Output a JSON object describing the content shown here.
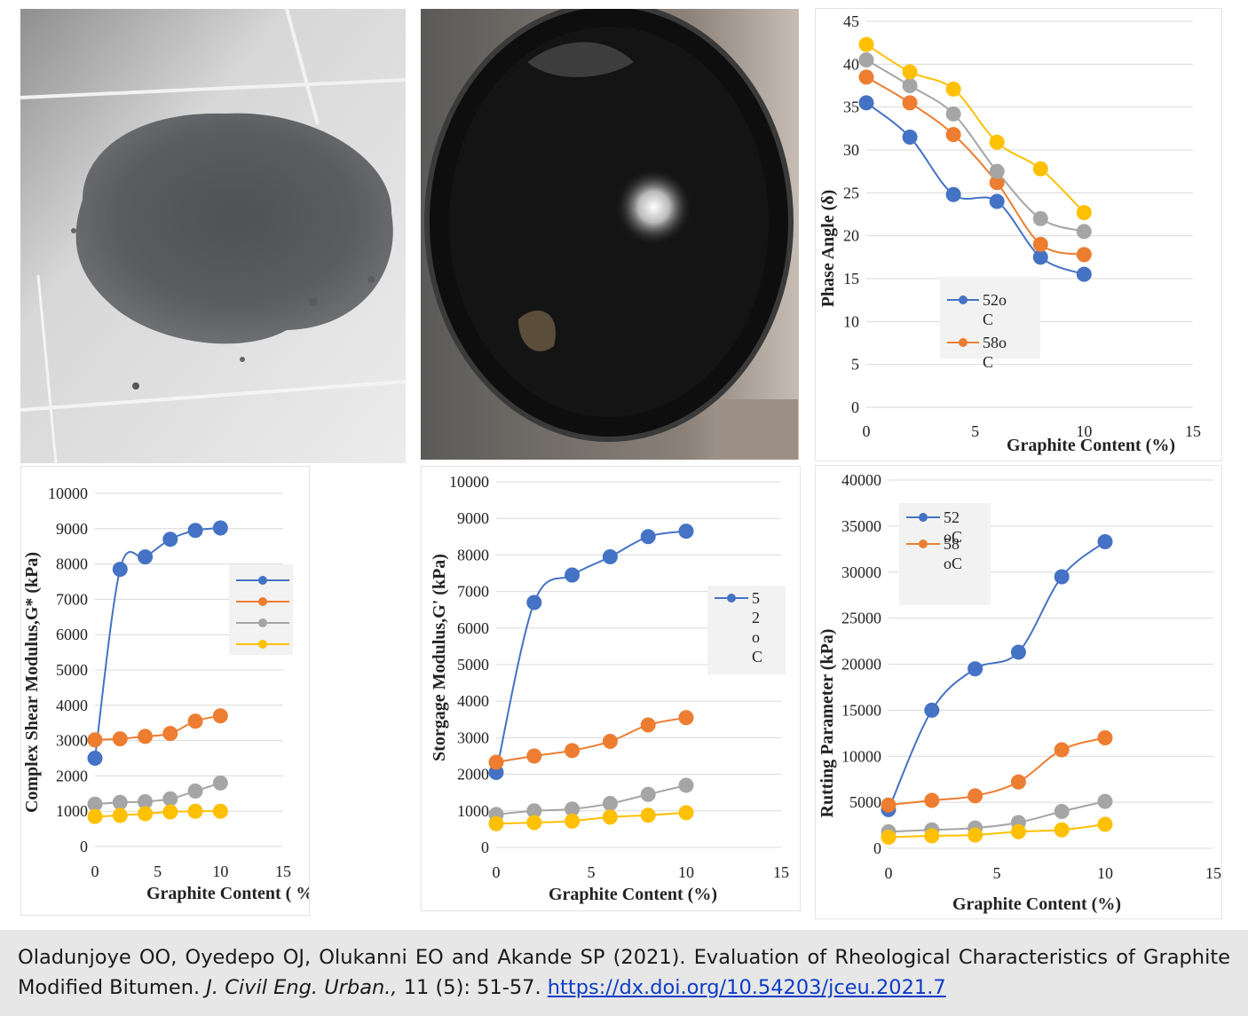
{
  "photos": [
    {
      "name": "graphite-powder-photo",
      "subject": "graphite powder"
    },
    {
      "name": "bitumen-bucket-photo",
      "subject": "modified bitumen in bucket"
    }
  ],
  "colors": {
    "blue": "#4472C4",
    "orange": "#ED7D31",
    "gray": "#A5A5A5",
    "yellow": "#FFC000"
  },
  "chart_data": [
    {
      "id": "phase",
      "type": "line",
      "ylabel": "Phase Angle (δ)",
      "xlabel": "Graphite Content (%)",
      "xlim": [
        0,
        15
      ],
      "ylim": [
        0,
        45
      ],
      "xticks": [
        "0",
        "5",
        "10",
        "15"
      ],
      "yticks": [
        "0",
        "5",
        "10",
        "15",
        "20",
        "25",
        "30",
        "35",
        "40",
        "45"
      ],
      "x": [
        0,
        2,
        4,
        6,
        8,
        10
      ],
      "series": [
        {
          "name": "52oC",
          "color": "#4472C4",
          "values": [
            35.5,
            31.5,
            24.8,
            24.0,
            17.5,
            15.5
          ]
        },
        {
          "name": "58oC",
          "color": "#ED7D31",
          "values": [
            38.5,
            35.5,
            31.8,
            26.2,
            19.0,
            17.8
          ]
        },
        {
          "name": "",
          "color": "#A5A5A5",
          "values": [
            40.5,
            37.5,
            34.2,
            27.5,
            22.0,
            20.5
          ]
        },
        {
          "name": "",
          "color": "#FFC000",
          "values": [
            42.3,
            39.1,
            37.1,
            30.9,
            27.8,
            22.7
          ]
        }
      ],
      "legend": {
        "placement": "bottom-center",
        "entries": [
          [
            "52o",
            "C"
          ],
          [
            "58o",
            "C"
          ]
        ]
      }
    },
    {
      "id": "complex",
      "type": "line",
      "ylabel": "Complex Shear Modulus,G* (kPa)",
      "xlabel": "Graphite Content ( %)",
      "xlim": [
        0,
        15
      ],
      "ylim": [
        0,
        10000
      ],
      "xticks": [
        "0",
        "5",
        "10",
        "15"
      ],
      "yticks": [
        "0",
        "1000",
        "2000",
        "3000",
        "4000",
        "5000",
        "6000",
        "7000",
        "8000",
        "9000",
        "10000"
      ],
      "x": [
        0,
        2,
        4,
        6,
        8,
        10
      ],
      "series": [
        {
          "name": "",
          "color": "#4472C4",
          "values": [
            2500,
            7850,
            8200,
            8700,
            8950,
            9020
          ]
        },
        {
          "name": "",
          "color": "#ED7D31",
          "values": [
            3020,
            3050,
            3120,
            3200,
            3550,
            3700
          ]
        },
        {
          "name": "",
          "color": "#A5A5A5",
          "values": [
            1200,
            1250,
            1270,
            1350,
            1570,
            1800
          ]
        },
        {
          "name": "",
          "color": "#FFC000",
          "values": [
            850,
            880,
            930,
            980,
            1000,
            1000
          ]
        }
      ],
      "legend": {
        "placement": "right",
        "entries": [
          [
            ""
          ],
          [
            ""
          ],
          [
            ""
          ],
          [
            ""
          ]
        ]
      }
    },
    {
      "id": "storage",
      "type": "line",
      "ylabel": "Storgage Modulus,G' (kPa)",
      "xlabel": "Graphite Content (%)",
      "xlim": [
        0,
        15
      ],
      "ylim": [
        0,
        10000
      ],
      "xticks": [
        "0",
        "5",
        "10",
        "15"
      ],
      "yticks": [
        "0",
        "1000",
        "2000",
        "3000",
        "4000",
        "5000",
        "6000",
        "7000",
        "8000",
        "9000",
        "10000"
      ],
      "x": [
        0,
        2,
        4,
        6,
        8,
        10
      ],
      "series": [
        {
          "name": "52oC",
          "color": "#4472C4",
          "values": [
            2050,
            6700,
            7450,
            7950,
            8500,
            8650
          ]
        },
        {
          "name": "",
          "color": "#ED7D31",
          "values": [
            2330,
            2500,
            2650,
            2900,
            3350,
            3550
          ]
        },
        {
          "name": "",
          "color": "#A5A5A5",
          "values": [
            900,
            1000,
            1050,
            1200,
            1450,
            1700
          ]
        },
        {
          "name": "",
          "color": "#FFC000",
          "values": [
            650,
            680,
            720,
            830,
            880,
            950
          ]
        }
      ],
      "legend": {
        "placement": "right",
        "entries": [
          [
            "5",
            "2",
            "o",
            "C"
          ]
        ]
      }
    },
    {
      "id": "rutting",
      "type": "line",
      "ylabel": "Rutting Parameter (kPa)",
      "xlabel": "Graphite Content (%)",
      "xlim": [
        0,
        15
      ],
      "ylim": [
        0,
        40000
      ],
      "xticks": [
        "0",
        "5",
        "10",
        "15"
      ],
      "yticks": [
        "0",
        "5000",
        "10000",
        "15000",
        "20000",
        "25000",
        "30000",
        "35000",
        "40000"
      ],
      "x": [
        0,
        2,
        4,
        6,
        8,
        10
      ],
      "series": [
        {
          "name": "52 oC",
          "color": "#4472C4",
          "values": [
            4200,
            15000,
            19500,
            21300,
            29500,
            33300
          ]
        },
        {
          "name": "58 oC",
          "color": "#ED7D31",
          "values": [
            4700,
            5200,
            5700,
            7200,
            10700,
            12000
          ]
        },
        {
          "name": "",
          "color": "#A5A5A5",
          "values": [
            1800,
            2000,
            2200,
            2800,
            4000,
            5100
          ]
        },
        {
          "name": "",
          "color": "#FFC000",
          "values": [
            1200,
            1350,
            1450,
            1800,
            2000,
            2600
          ]
        }
      ],
      "legend": {
        "placement": "top-left",
        "entries": [
          [
            "52",
            "oC"
          ],
          [
            "58",
            "oC"
          ]
        ]
      }
    }
  ],
  "citation": {
    "authors": "Oladunjoye OO, Oyedepo OJ, Olukanni EO and Akande SP (2021). Evaluation of Rheological Characteristics of Graphite Modified Bitumen.",
    "journal": "J. Civil Eng. Urban.,",
    "volume": "11 (5): 51-57.",
    "doi": "https://dx.doi.org/10.54203/jceu.2021.7"
  }
}
